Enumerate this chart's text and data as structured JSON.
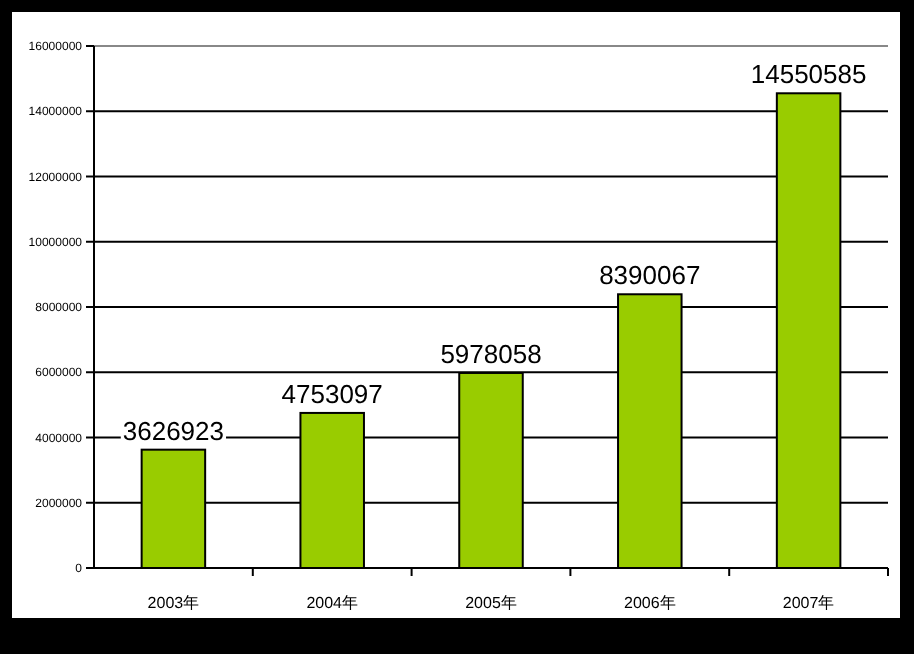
{
  "chart_data": {
    "type": "bar",
    "categories": [
      "2003年",
      "2004年",
      "2005年",
      "2006年",
      "2007年"
    ],
    "values": [
      3626923,
      4753097,
      5978058,
      8390067,
      14550585
    ],
    "color": "#99cc00",
    "ylim": [
      0,
      16000000
    ],
    "yticks": [
      0,
      2000000,
      4000000,
      6000000,
      8000000,
      10000000,
      12000000,
      14000000,
      16000000
    ],
    "grid": "y",
    "data_labels": true
  }
}
